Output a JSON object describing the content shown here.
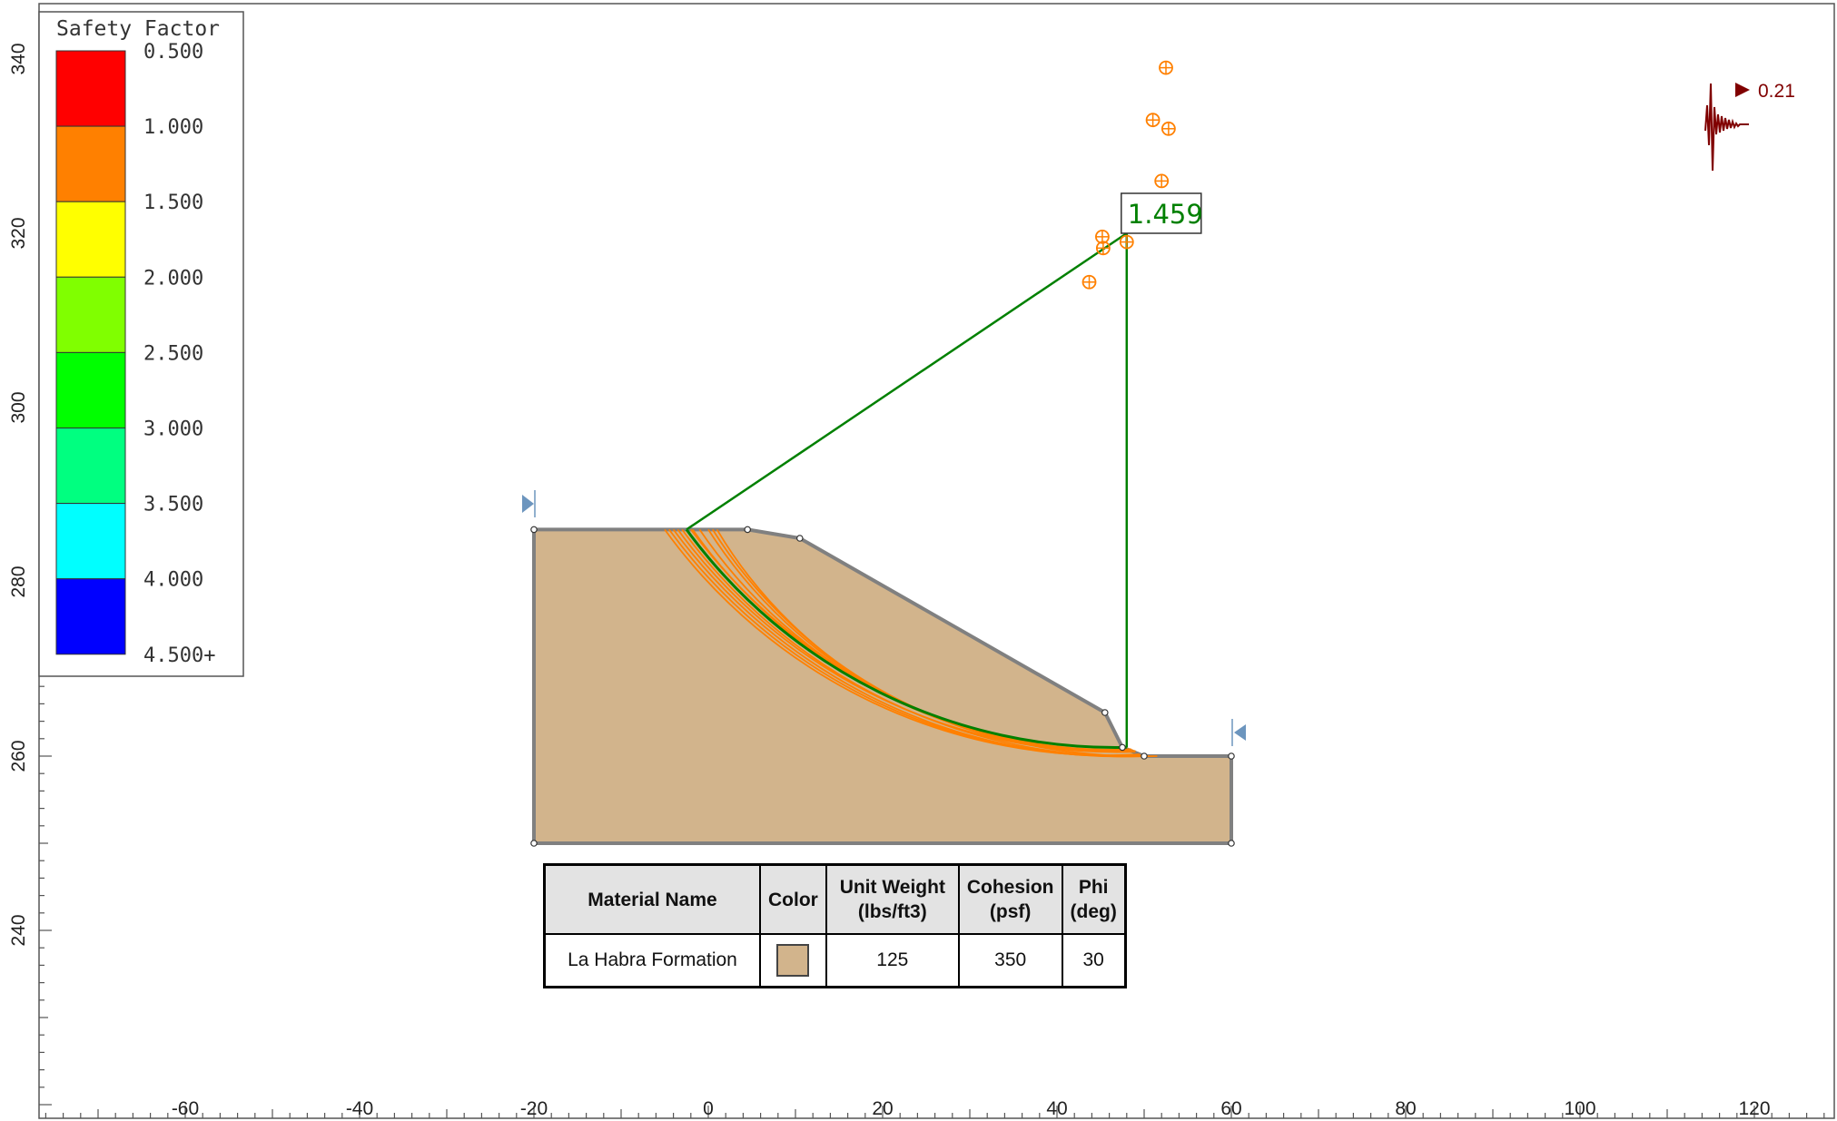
{
  "legend": {
    "title": "Safety Factor",
    "bins": [
      {
        "label": "0.500",
        "color": "#ff0000"
      },
      {
        "label": "1.000",
        "color": "#ff8000"
      },
      {
        "label": "1.500",
        "color": "#ffff00"
      },
      {
        "label": "2.000",
        "color": "#80ff00"
      },
      {
        "label": "2.500",
        "color": "#00ff00"
      },
      {
        "label": "3.000",
        "color": "#00ff80"
      },
      {
        "label": "3.500",
        "color": "#00ffff"
      },
      {
        "label": "4.000",
        "color": "#0000ff"
      }
    ],
    "last_label": "4.500+"
  },
  "axes": {
    "x_ticks": [
      -60,
      -40,
      -20,
      0,
      20,
      40,
      60,
      80,
      100,
      120
    ],
    "y_ticks": [
      240,
      260,
      280,
      300,
      320,
      340
    ],
    "x_range": [
      -76,
      128
    ],
    "y_range": [
      219,
      343
    ]
  },
  "slope": {
    "material_color": "#d2b48c",
    "outline_color": "#808080",
    "outline": [
      [
        -20,
        250
      ],
      [
        -20,
        286
      ],
      [
        4.5,
        286
      ],
      [
        10.5,
        285
      ],
      [
        45.5,
        265
      ],
      [
        47.5,
        261
      ],
      [
        50,
        260
      ],
      [
        60,
        260
      ],
      [
        60,
        250
      ]
    ],
    "vertices": [
      [
        -20,
        286
      ],
      [
        4.5,
        286
      ],
      [
        10.5,
        285
      ],
      [
        45.5,
        265
      ],
      [
        47.5,
        261
      ],
      [
        50,
        260
      ],
      [
        60,
        260
      ],
      [
        60,
        250
      ],
      [
        -20,
        250
      ]
    ]
  },
  "critical_surface": {
    "factor_of_safety": "1.459",
    "center": [
      48,
      320
    ],
    "entry": [
      -2.5,
      286
    ],
    "exit": [
      48,
      261
    ],
    "color": "#008000"
  },
  "slip_centers": [
    [
      52.5,
      339
    ],
    [
      51,
      333
    ],
    [
      52.8,
      332
    ],
    [
      52,
      326
    ],
    [
      45.2,
      319.6
    ],
    [
      45.3,
      318.3
    ],
    [
      43.7,
      314.4
    ],
    [
      48,
      319
    ]
  ],
  "slip_surface_color": "#ff8000",
  "seismic": {
    "label": "0.21",
    "color": "#800000"
  },
  "materials_table": {
    "headers": [
      "Material Name",
      "Color",
      "Unit Weight\n(lbs/ft3)",
      "Cohesion\n(psf)",
      "Phi\n(deg)"
    ],
    "rows": [
      {
        "name": "La Habra Formation",
        "color": "#d2b48c",
        "unit_weight": "125",
        "cohesion": "350",
        "phi": "30"
      }
    ]
  }
}
